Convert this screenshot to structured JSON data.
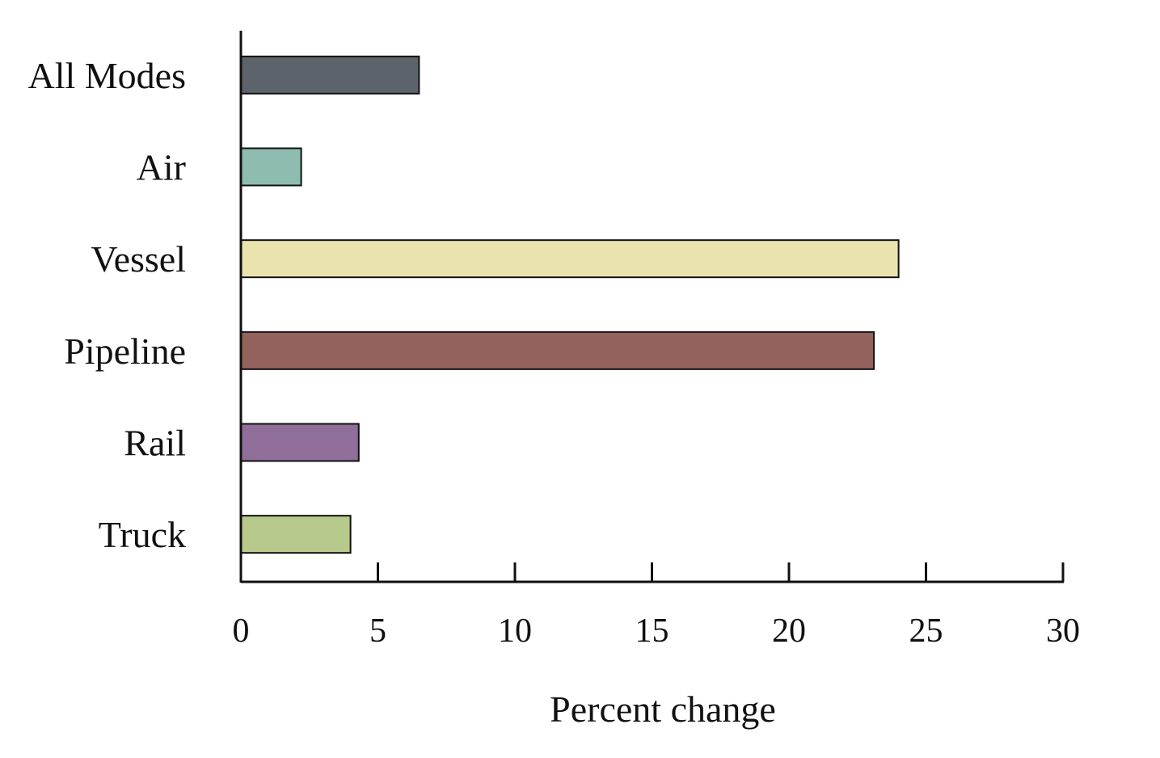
{
  "chart_data": {
    "type": "bar",
    "orientation": "horizontal",
    "categories": [
      "All Modes",
      "Air",
      "Vessel",
      "Pipeline",
      "Rail",
      "Truck"
    ],
    "values": [
      6.5,
      2.2,
      24.0,
      23.1,
      4.3,
      4.0
    ],
    "colors": [
      "#5c636a",
      "#8fbcb0",
      "#ebe3ad",
      "#93625c",
      "#8f6e9a",
      "#b8c98c"
    ],
    "xlabel": "Percent change",
    "ylabel": "",
    "title": "",
    "xlim": [
      0,
      30
    ],
    "xticks": [
      0,
      5,
      10,
      15,
      20,
      25,
      30
    ],
    "xtick_labels": [
      "0",
      "5",
      "10",
      "15",
      "20",
      "25",
      "30"
    ],
    "grid": false,
    "legend": "none"
  }
}
